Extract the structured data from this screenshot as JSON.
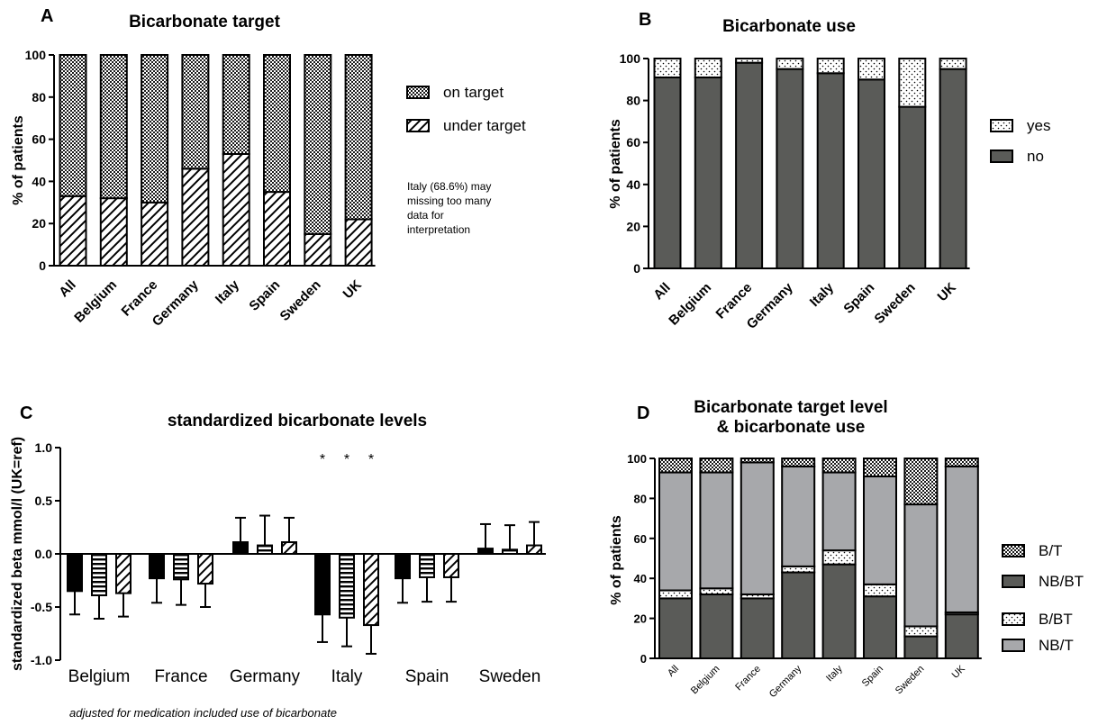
{
  "chart_data": [
    {
      "panel_letter": "A",
      "type": "bar",
      "stacked": true,
      "title": "Bicarbonate target",
      "ylabel": "% of patients",
      "ylim": [
        0,
        100
      ],
      "yticks": [
        0,
        20,
        40,
        60,
        80,
        100
      ],
      "categories": [
        "All",
        "Belgium",
        "France",
        "Germany",
        "Italy",
        "Spain",
        "Sweden",
        "UK"
      ],
      "series": [
        {
          "name": "under target",
          "pattern": "diagonal",
          "values": [
            33,
            32,
            30,
            46,
            53,
            35,
            15,
            22
          ]
        },
        {
          "name": "on target",
          "pattern": "checker",
          "values": [
            67,
            68,
            70,
            54,
            47,
            65,
            85,
            78
          ]
        }
      ],
      "legend_order": [
        "on target",
        "under target"
      ],
      "legend_position": "right",
      "annotation": [
        "Italy (68.6%) may",
        "missing too many",
        "data for",
        "interpretation"
      ]
    },
    {
      "panel_letter": "B",
      "type": "bar",
      "stacked": true,
      "title": "Bicarbonate use",
      "ylabel": "% of patients",
      "ylim": [
        0,
        100
      ],
      "yticks": [
        0,
        20,
        40,
        60,
        80,
        100
      ],
      "categories": [
        "All",
        "Belgium",
        "France",
        "Germany",
        "Italy",
        "Spain",
        "Sweden",
        "UK"
      ],
      "series": [
        {
          "name": "no",
          "pattern": "dark",
          "values": [
            91,
            91,
            98,
            95,
            93,
            90,
            77,
            95
          ]
        },
        {
          "name": "yes",
          "pattern": "dots",
          "values": [
            9,
            9,
            2,
            5,
            7,
            10,
            23,
            5
          ]
        }
      ],
      "legend_order": [
        "yes",
        "no"
      ],
      "legend_position": "right"
    },
    {
      "panel_letter": "C",
      "type": "bar",
      "title": "standardized bicarbonate levels",
      "ylabel": "standardized beta mmol/l (UK=ref)",
      "ylim": [
        -1.0,
        1.0
      ],
      "yticks": [
        -1.0,
        -0.5,
        0.0,
        0.5,
        1.0
      ],
      "ytick_labels": [
        "-1.0",
        "-0.5",
        "0.0",
        "0.5",
        "1.0"
      ],
      "categories": [
        "Belgium",
        "France",
        "Germany",
        "Italy",
        "Spain",
        "Sweden"
      ],
      "series": [
        {
          "pattern": "solid",
          "values": [
            -0.35,
            -0.23,
            0.11,
            -0.57,
            -0.23,
            0.05
          ],
          "errors": [
            0.22,
            0.23,
            0.23,
            0.26,
            0.23,
            0.23
          ]
        },
        {
          "pattern": "horizontal",
          "values": [
            -0.39,
            -0.24,
            0.08,
            -0.6,
            -0.22,
            0.04
          ],
          "errors": [
            0.22,
            0.24,
            0.28,
            0.27,
            0.23,
            0.23
          ]
        },
        {
          "pattern": "diagonal",
          "values": [
            -0.37,
            -0.28,
            0.11,
            -0.67,
            -0.22,
            0.08
          ],
          "errors": [
            0.22,
            0.22,
            0.23,
            0.27,
            0.23,
            0.22
          ]
        }
      ],
      "significance_marks": [
        "*",
        "*",
        "*"
      ],
      "footnote": "adjusted for medication included use of bicarbonate"
    },
    {
      "panel_letter": "D",
      "type": "bar",
      "stacked": true,
      "title": [
        "Bicarbonate target level",
        "& bicarbonate use"
      ],
      "ylabel": "% of patients",
      "ylim": [
        0,
        100
      ],
      "yticks": [
        0,
        20,
        40,
        60,
        80,
        100
      ],
      "categories": [
        "All",
        "Belgium",
        "France",
        "Germany",
        "Italy",
        "Spain",
        "Sweden",
        "UK"
      ],
      "series": [
        {
          "name": "NB/BT",
          "pattern": "dark",
          "values": [
            30,
            32,
            30,
            43,
            47,
            31,
            11,
            22
          ]
        },
        {
          "name": "B/BT",
          "pattern": "dots",
          "values": [
            4,
            3,
            2,
            3,
            7,
            6,
            5,
            1
          ]
        },
        {
          "name": "NB/T",
          "pattern": "light",
          "values": [
            59,
            58,
            66,
            50,
            39,
            54,
            61,
            73
          ]
        },
        {
          "name": "B/T",
          "pattern": "checker",
          "values": [
            7,
            7,
            2,
            4,
            7,
            9,
            23,
            4
          ]
        }
      ],
      "legend_order": [
        "B/T",
        "NB/BT",
        "B/BT",
        "NB/T"
      ],
      "legend_position": "right"
    }
  ],
  "colors": {
    "dark": "#5a5b58",
    "light": "#a7a8ab",
    "ink": "#000000"
  }
}
